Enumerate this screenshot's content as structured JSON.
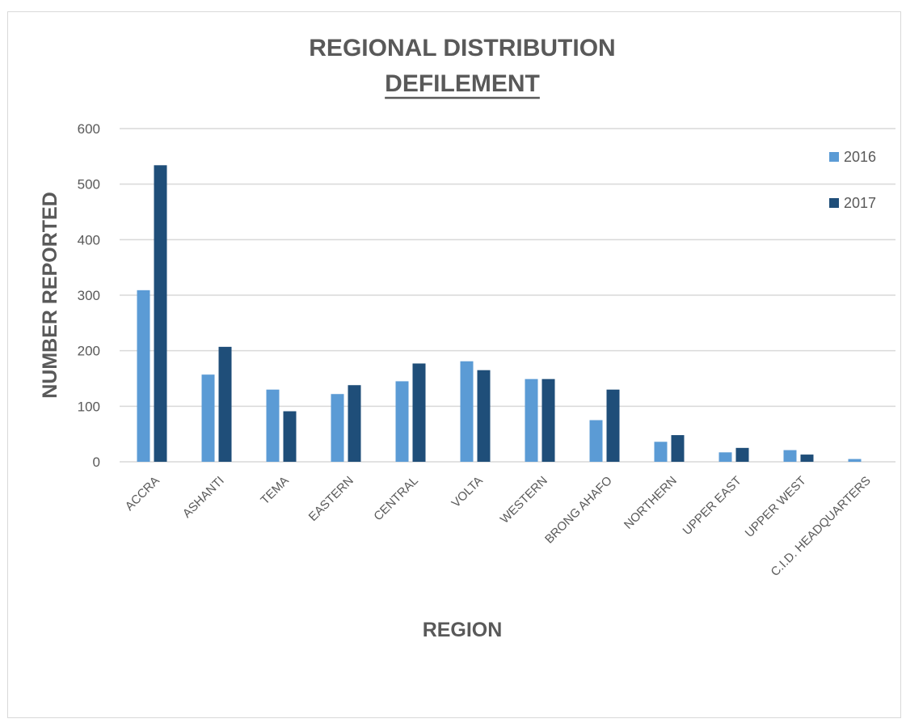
{
  "chart_data": {
    "type": "bar",
    "title": "REGIONAL DISTRIBUTION",
    "subtitle": "DEFILEMENT",
    "xlabel": "REGION",
    "ylabel": "NUMBER REPORTED",
    "ylim": [
      0,
      600
    ],
    "yticks": [
      "0",
      "100",
      "200",
      "300",
      "400",
      "500",
      "600"
    ],
    "grid": true,
    "legend_position": "right",
    "categories": [
      "ACCRA",
      "ASHANTI",
      "TEMA",
      "EASTERN",
      "CENTRAL",
      "VOLTA",
      "WESTERN",
      "BRONG AHAFO",
      "NORTHERN",
      "UPPER EAST",
      "UPPER WEST",
      "C.I.D. HEADQUARTERS"
    ],
    "series": [
      {
        "name": "2016",
        "color": "#5b9bd5",
        "values": [
          309,
          157,
          130,
          122,
          145,
          181,
          149,
          75,
          36,
          17,
          21,
          5
        ]
      },
      {
        "name": "2017",
        "color": "#1f4e79",
        "values": [
          534,
          207,
          91,
          138,
          177,
          165,
          149,
          130,
          48,
          25,
          13,
          0
        ]
      }
    ]
  }
}
